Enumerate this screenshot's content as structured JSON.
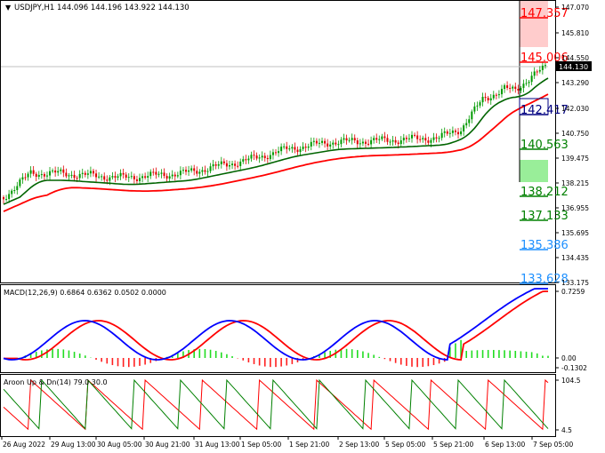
{
  "window": {
    "symbol_title": "USDJPY,H1",
    "ohlc": "144.096 144.196 143.922 144.130"
  },
  "colors": {
    "background": "#ffffff",
    "up_candle": "#009a00",
    "down_candle": "#e00000",
    "ma_fast": "#006400",
    "ma_slow": "#ff0000",
    "macd_main": "#0000ff",
    "macd_signal": "#ff0000",
    "hist_pos": "#22dd22",
    "hist_neg": "#ff2020",
    "aroon_up": "#008000",
    "aroon_down": "#ff0000",
    "zone_red": "#ffcccc",
    "zone_green": "#99ee99",
    "level_red": "#ff0000",
    "level_navy": "#000080",
    "level_green": "#008000",
    "level_blue": "#1e90ff",
    "current_price_bg": "#000000"
  },
  "price_axis": {
    "ticks": [
      "147.070",
      "145.810",
      "144.550",
      "143.290",
      "142.030",
      "140.750",
      "139.475",
      "138.215",
      "136.955",
      "135.695",
      "134.435",
      "133.175"
    ],
    "current_price": "144.130"
  },
  "levels": [
    {
      "label": "147.357",
      "color": "#ff0000"
    },
    {
      "label": "145.006",
      "color": "#ff0000"
    },
    {
      "label": "142.417",
      "color": "#000080"
    },
    {
      "label": "140.563",
      "color": "#008000"
    },
    {
      "label": "138.212",
      "color": "#008000"
    },
    {
      "label": "137.133",
      "color": "#008000"
    },
    {
      "label": "135.386",
      "color": "#1e90ff"
    },
    {
      "label": "133.628",
      "color": "#1e90ff"
    }
  ],
  "macd": {
    "title": "MACD(12,26,9) 0.6864 0.6362 0.0502 0.0000",
    "ticks": [
      "0.7259",
      "0.00",
      "-0.1302"
    ]
  },
  "aroon": {
    "title": "Aroon Up & Dn(14) 79.0 30.0",
    "ticks": [
      "104.5",
      "4.5"
    ]
  },
  "time_axis": {
    "labels": [
      "26 Aug 2022",
      "29 Aug 13:00",
      "30 Aug 05:00",
      "30 Aug 21:00",
      "31 Aug 13:00",
      "1 Sep 05:00",
      "1 Sep 21:00",
      "2 Sep 13:00",
      "5 Sep 05:00",
      "5 Sep 21:00",
      "6 Sep 13:00",
      "7 Sep 05:00"
    ]
  }
}
